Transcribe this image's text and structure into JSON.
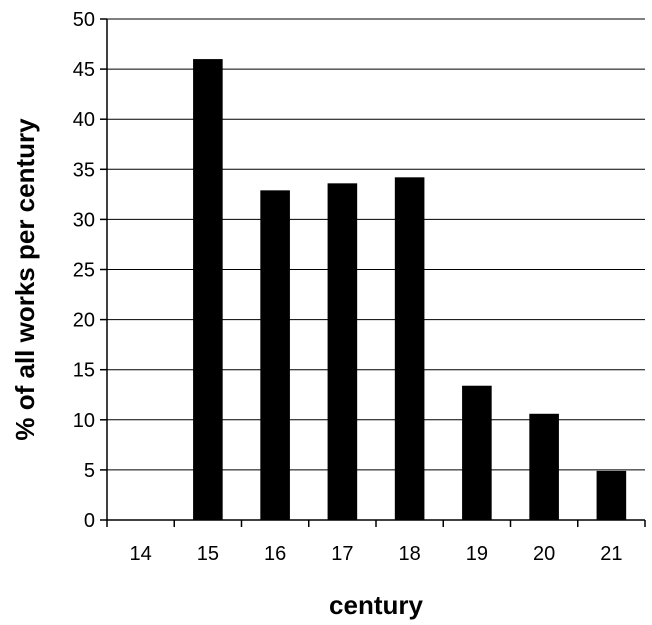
{
  "chart_data": {
    "type": "bar",
    "title": "",
    "xlabel": "century",
    "ylabel": "% of all works per century",
    "categories": [
      "14",
      "15",
      "16",
      "17",
      "18",
      "19",
      "20",
      "21"
    ],
    "values": [
      0,
      46,
      32.9,
      33.6,
      34.2,
      13.4,
      10.6,
      4.9
    ],
    "ylim": [
      0,
      50
    ],
    "yticks": [
      0,
      5,
      10,
      15,
      20,
      25,
      30,
      35,
      40,
      45,
      50
    ],
    "grid": true,
    "bar_color": "#000000"
  }
}
